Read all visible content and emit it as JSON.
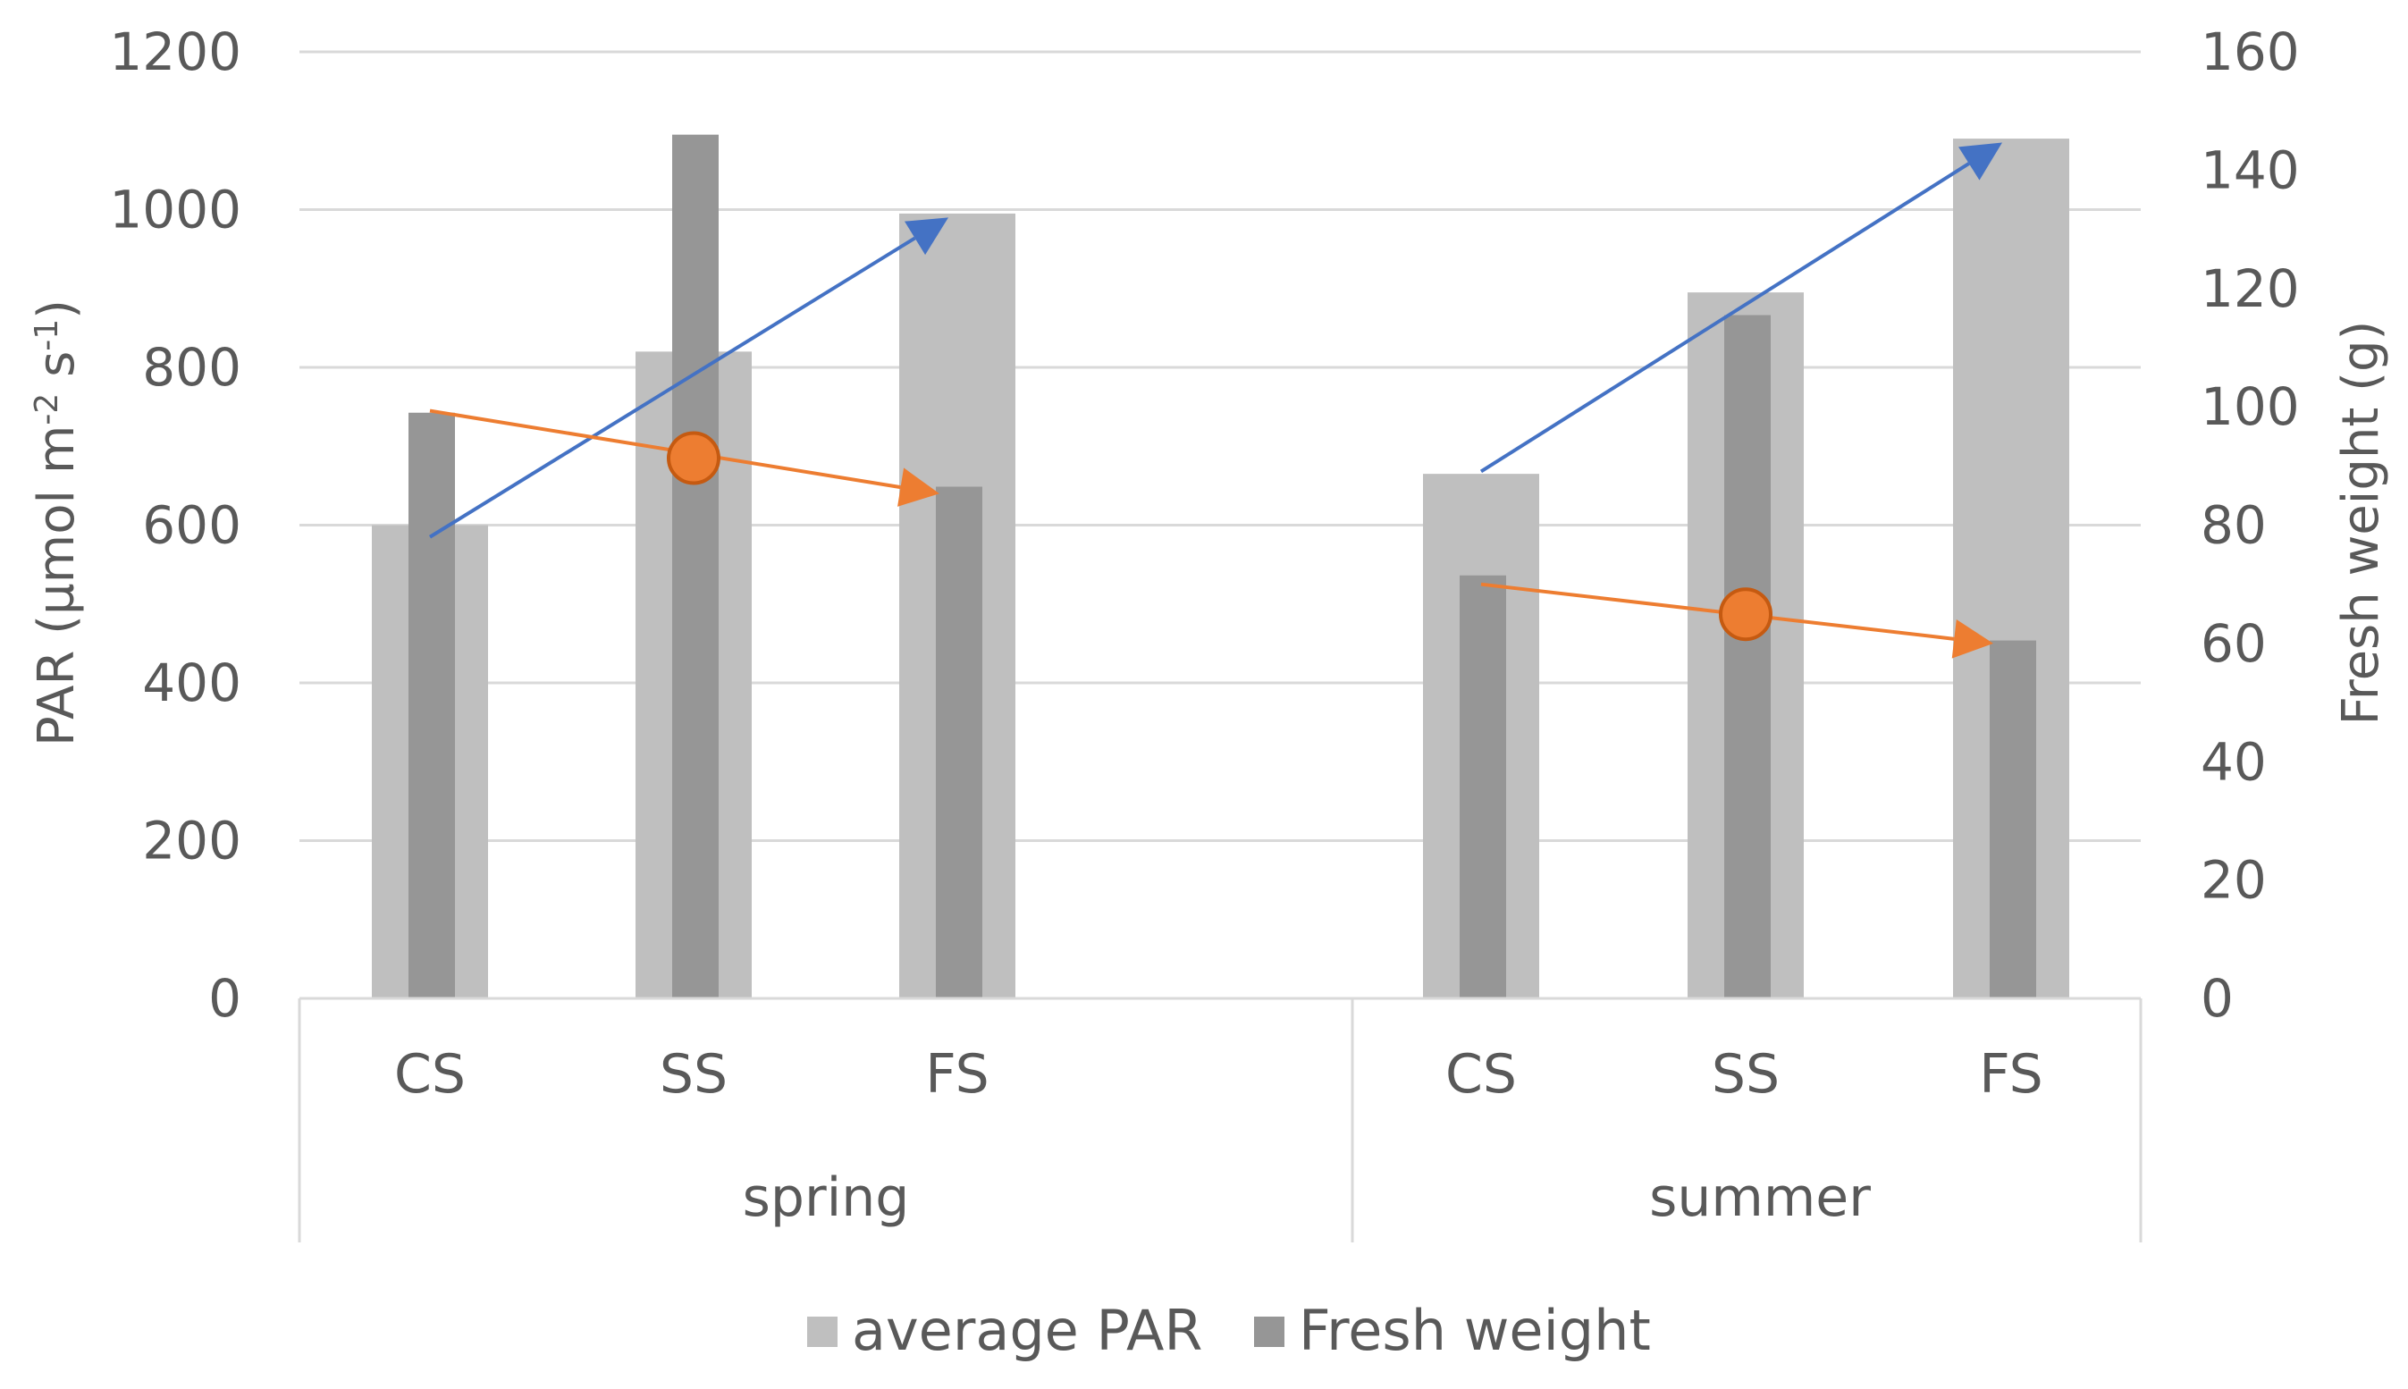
{
  "chart_data": {
    "type": "bar",
    "title": "",
    "groups": [
      {
        "label": "spring",
        "categories": [
          "CS",
          "SS",
          "FS"
        ]
      },
      {
        "label": "summer",
        "categories": [
          "CS",
          "SS",
          "FS"
        ]
      }
    ],
    "series": [
      {
        "name": "average PAR",
        "axis": "left",
        "color": "#BFBFBF",
        "values": [
          600,
          820,
          995,
          665,
          895,
          1090
        ]
      },
      {
        "name": "Fresh weight",
        "axis": "right",
        "color": "#969696",
        "values": [
          99,
          146,
          86.5,
          71.5,
          115.5,
          60.5
        ]
      }
    ],
    "left_axis": {
      "label": "PAR (µmol m-2 s-1)",
      "label_parts": [
        "PAR (µmol m",
        "-2",
        " s",
        "-1",
        ")"
      ],
      "min": 0,
      "max": 1200,
      "step": 200
    },
    "right_axis": {
      "label": "Fresh weight (g)",
      "min": 0,
      "max": 160,
      "step": 20
    },
    "annotations": [
      {
        "group": "spring",
        "color": "#4472C4",
        "kind": "arrow-up",
        "from": {
          "category": "CS",
          "par": 585
        },
        "to": {
          "category": "FS",
          "par": 990
        }
      },
      {
        "group": "spring",
        "color": "#ED7D31",
        "kind": "arrow-down",
        "from": {
          "category": "CS",
          "par": 745
        },
        "to": {
          "category": "FS",
          "par": 640
        },
        "marker": {
          "category": "SS",
          "par": 685
        }
      },
      {
        "group": "summer",
        "color": "#4472C4",
        "kind": "arrow-up",
        "from": {
          "category": "CS",
          "par": 668
        },
        "to": {
          "category": "FS",
          "par": 1085
        }
      },
      {
        "group": "summer",
        "color": "#ED7D31",
        "kind": "arrow-down",
        "from": {
          "category": "CS",
          "par": 525
        },
        "to": {
          "category": "FS",
          "par": 450
        },
        "marker": {
          "category": "SS",
          "par": 487
        }
      }
    ],
    "legend": {
      "position": "bottom",
      "items": [
        "average PAR",
        "Fresh weight"
      ]
    },
    "grid": true
  }
}
